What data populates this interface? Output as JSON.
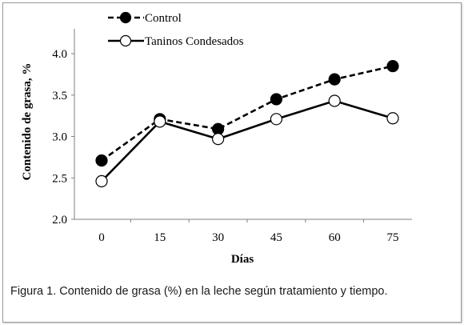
{
  "chart_data": {
    "type": "line",
    "x": [
      0,
      15,
      30,
      45,
      60,
      75
    ],
    "tick_labels_x": [
      "0",
      "15",
      "30",
      "45",
      "60",
      "75"
    ],
    "tick_labels_y": [
      "2.0",
      "2.5",
      "3.0",
      "3.5",
      "4.0"
    ],
    "ylim": [
      2.0,
      4.3
    ],
    "xlabel": "Días",
    "ylabel": "Contenido de grasa, %",
    "legend_position": "top-left",
    "grid": false,
    "series": [
      {
        "name": "Control",
        "values": [
          2.71,
          3.21,
          3.09,
          3.45,
          3.69,
          3.85
        ],
        "style": "dashed",
        "marker": "filled-circle",
        "color": "#000000"
      },
      {
        "name": "Taninos Condesados",
        "values": [
          2.46,
          3.18,
          2.97,
          3.21,
          3.43,
          3.22
        ],
        "style": "solid",
        "marker": "open-circle",
        "color": "#000000"
      }
    ]
  },
  "caption": "Figura 1. Contenido de grasa (%) en la leche según tratamiento y tiempo."
}
